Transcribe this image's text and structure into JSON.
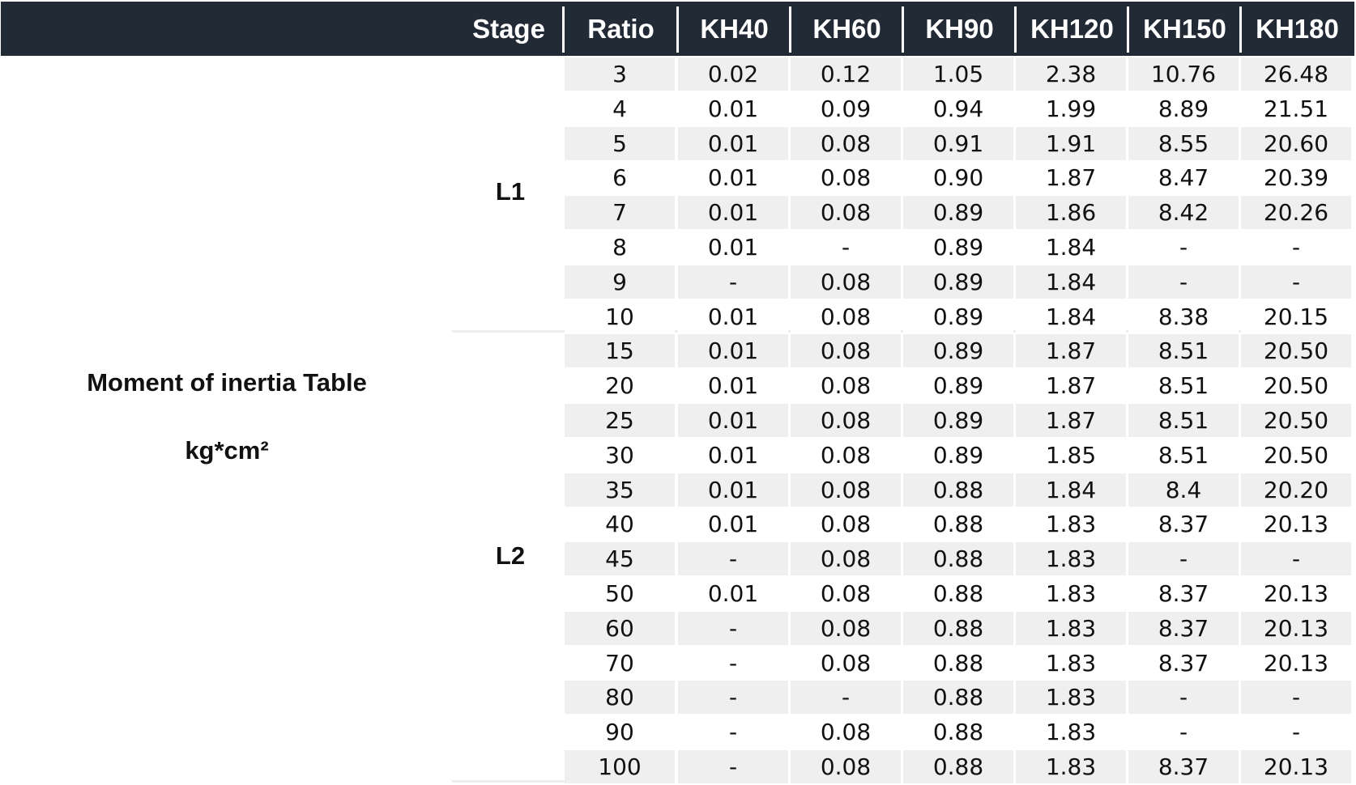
{
  "title": "Moment of inertia Table",
  "unit": "kg*cm²",
  "columns": [
    "Stage",
    "Ratio",
    "KH40",
    "KH60",
    "KH90",
    "KH120",
    "KH150",
    "KH180"
  ],
  "stages": [
    {
      "label": "L1"
    },
    {
      "label": "L2"
    }
  ],
  "rows": [
    {
      "stage": "L1",
      "cells": [
        "3",
        "0.02",
        "0.12",
        "1.05",
        "2.38",
        "10.76",
        "26.48"
      ]
    },
    {
      "stage": "L1",
      "cells": [
        "4",
        "0.01",
        "0.09",
        "0.94",
        "1.99",
        "8.89",
        "21.51"
      ]
    },
    {
      "stage": "L1",
      "cells": [
        "5",
        "0.01",
        "0.08",
        "0.91",
        "1.91",
        "8.55",
        "20.60"
      ]
    },
    {
      "stage": "L1",
      "cells": [
        "6",
        "0.01",
        "0.08",
        "0.90",
        "1.87",
        "8.47",
        "20.39"
      ]
    },
    {
      "stage": "L1",
      "cells": [
        "7",
        "0.01",
        "0.08",
        "0.89",
        "1.86",
        "8.42",
        "20.26"
      ]
    },
    {
      "stage": "L1",
      "cells": [
        "8",
        "0.01",
        "-",
        "0.89",
        "1.84",
        "-",
        "-"
      ]
    },
    {
      "stage": "L1",
      "cells": [
        "9",
        "-",
        "0.08",
        "0.89",
        "1.84",
        "-",
        "-"
      ]
    },
    {
      "stage": "L1",
      "cells": [
        "10",
        "0.01",
        "0.08",
        "0.89",
        "1.84",
        "8.38",
        "20.15"
      ]
    },
    {
      "stage": "L2",
      "cells": [
        "15",
        "0.01",
        "0.08",
        "0.89",
        "1.87",
        "8.51",
        "20.50"
      ]
    },
    {
      "stage": "L2",
      "cells": [
        "20",
        "0.01",
        "0.08",
        "0.89",
        "1.87",
        "8.51",
        "20.50"
      ]
    },
    {
      "stage": "L2",
      "cells": [
        "25",
        "0.01",
        "0.08",
        "0.89",
        "1.87",
        "8.51",
        "20.50"
      ]
    },
    {
      "stage": "L2",
      "cells": [
        "30",
        "0.01",
        "0.08",
        "0.89",
        "1.85",
        "8.51",
        "20.50"
      ]
    },
    {
      "stage": "L2",
      "cells": [
        "35",
        "0.01",
        "0.08",
        "0.88",
        "1.84",
        "8.4",
        "20.20"
      ]
    },
    {
      "stage": "L2",
      "cells": [
        "40",
        "0.01",
        "0.08",
        "0.88",
        "1.83",
        "8.37",
        "20.13"
      ]
    },
    {
      "stage": "L2",
      "cells": [
        "45",
        "-",
        "0.08",
        "0.88",
        "1.83",
        "-",
        "-"
      ]
    },
    {
      "stage": "L2",
      "cells": [
        "50",
        "0.01",
        "0.08",
        "0.88",
        "1.83",
        "8.37",
        "20.13"
      ]
    },
    {
      "stage": "L2",
      "cells": [
        "60",
        "-",
        "0.08",
        "0.88",
        "1.83",
        "8.37",
        "20.13"
      ]
    },
    {
      "stage": "L2",
      "cells": [
        "70",
        "-",
        "0.08",
        "0.88",
        "1.83",
        "8.37",
        "20.13"
      ]
    },
    {
      "stage": "L2",
      "cells": [
        "80",
        "-",
        "-",
        "0.88",
        "1.83",
        "-",
        "-"
      ]
    },
    {
      "stage": "L2",
      "cells": [
        "90",
        "-",
        "0.08",
        "0.88",
        "1.83",
        "-",
        "-"
      ]
    },
    {
      "stage": "L2",
      "cells": [
        "100",
        "-",
        "0.08",
        "0.88",
        "1.83",
        "8.37",
        "20.13"
      ]
    }
  ],
  "colors": {
    "header_bg": "#222a35",
    "header_text": "#ffffff",
    "row_shade": "#efefef"
  }
}
